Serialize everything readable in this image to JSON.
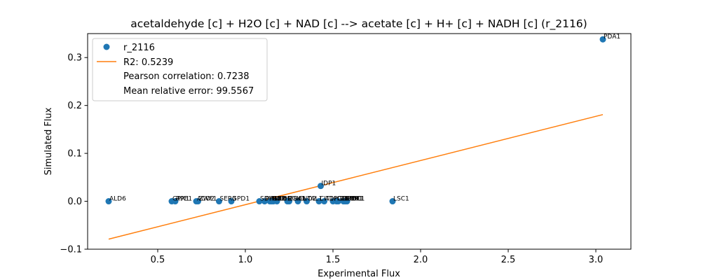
{
  "chart_data": {
    "type": "scatter",
    "title": "acetaldehyde [c] + H2O [c] + NAD [c] --> acetate [c] + H+ [c] + NADH [c] (r_2116)",
    "xlabel": "Experimental Flux",
    "ylabel": "Simulated Flux",
    "xlim": [
      0.1,
      3.2
    ],
    "ylim": [
      -0.1,
      0.35
    ],
    "x_ticks": [
      "0.5",
      "1.0",
      "1.5",
      "2.0",
      "2.5",
      "3.0"
    ],
    "y_ticks": [
      "−0.1",
      "0.0",
      "0.1",
      "0.2",
      "0.3"
    ],
    "grid": false,
    "legend_position": "upper-left",
    "colors": {
      "points": "#1f77b4",
      "fit_line": "#ff7f0e"
    },
    "points": [
      {
        "label": "ALD6",
        "x": 0.22,
        "y": 0.0
      },
      {
        "label": "GPX1",
        "x": 0.58,
        "y": 0.0
      },
      {
        "label": "RPE1",
        "x": 0.6,
        "y": 0.0
      },
      {
        "label": "ACO2",
        "x": 0.72,
        "y": 0.0
      },
      {
        "label": "ZWF1",
        "x": 0.73,
        "y": 0.0
      },
      {
        "label": "SER3",
        "x": 0.85,
        "y": 0.0
      },
      {
        "label": "GPD1",
        "x": 0.92,
        "y": 0.0
      },
      {
        "label": "SDH1",
        "x": 1.08,
        "y": 0.0
      },
      {
        "label": "PYK2",
        "x": 1.11,
        "y": 0.0
      },
      {
        "label": "TKL1",
        "x": 1.14,
        "y": 0.0
      },
      {
        "label": "GND1",
        "x": 1.15,
        "y": 0.0
      },
      {
        "label": "MDH1",
        "x": 1.16,
        "y": 0.0
      },
      {
        "label": "TPI1",
        "x": 1.18,
        "y": 0.0
      },
      {
        "label": "PGK1",
        "x": 1.24,
        "y": 0.0
      },
      {
        "label": "FBA1",
        "x": 1.25,
        "y": 0.0
      },
      {
        "label": "ENO2",
        "x": 1.3,
        "y": 0.0
      },
      {
        "label": "TAL1",
        "x": 1.35,
        "y": 0.0
      },
      {
        "label": "IDP1",
        "x": 1.43,
        "y": 0.032
      },
      {
        "label": "CIT1",
        "x": 1.42,
        "y": 0.0
      },
      {
        "label": "ADH1",
        "x": 1.45,
        "y": 0.0
      },
      {
        "label": "PGI1",
        "x": 1.5,
        "y": 0.0
      },
      {
        "label": "CDC19",
        "x": 1.52,
        "y": 0.0
      },
      {
        "label": "TDH3",
        "x": 1.53,
        "y": 0.0
      },
      {
        "label": "GPM1",
        "x": 1.56,
        "y": 0.0
      },
      {
        "label": "FUM1",
        "x": 1.57,
        "y": 0.0
      },
      {
        "label": "PDC1",
        "x": 1.58,
        "y": 0.0
      },
      {
        "label": "LSC1",
        "x": 1.84,
        "y": 0.0
      },
      {
        "label": "PDA1",
        "x": 3.04,
        "y": 0.338
      }
    ],
    "visible_labels": [
      "ALD6",
      "GPX1",
      "RPE1",
      "ACO2",
      "ZWF1",
      "SER3",
      "GPD1",
      "IDP1",
      "CIT1",
      "PDC1",
      "LSC1",
      "PDA1"
    ],
    "fit_line": {
      "x": [
        0.22,
        3.04
      ],
      "y": [
        -0.079,
        0.181
      ]
    },
    "legend": {
      "series_name": "r_2116",
      "r2": "R2: 0.5239",
      "pearson": "Pearson correlation: 0.7238",
      "mre": "Mean relative error: 99.5567"
    }
  }
}
